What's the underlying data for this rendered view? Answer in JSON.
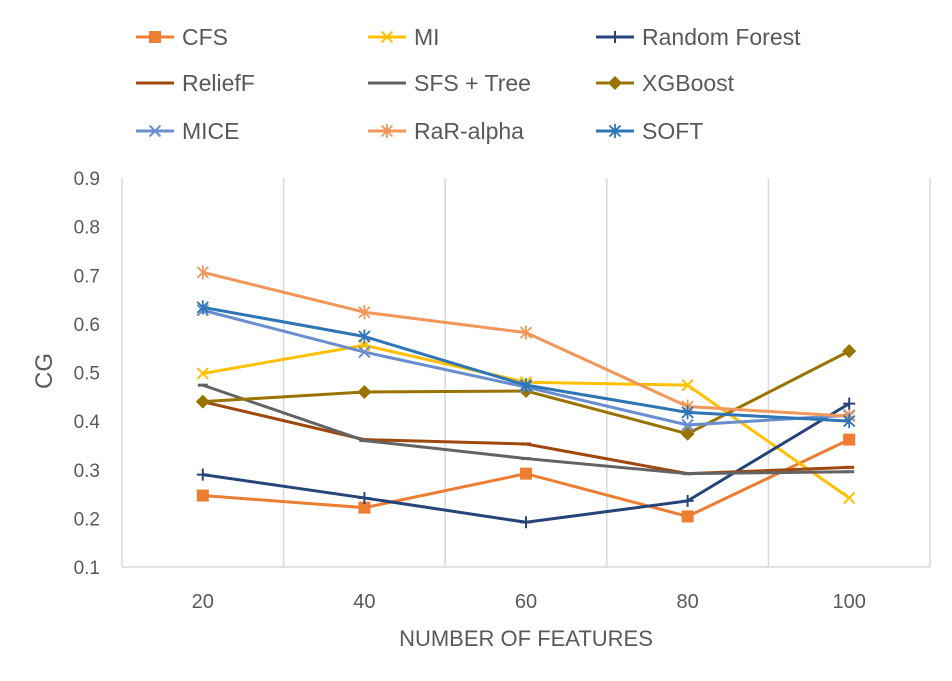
{
  "chart_data": {
    "type": "line",
    "title": "",
    "xlabel": "NUMBER OF FEATURES",
    "ylabel": "CG",
    "categories": [
      "20",
      "40",
      "60",
      "80",
      "100"
    ],
    "ylim": [
      0.1,
      0.9
    ],
    "yticks": [
      "0.1",
      "0.2",
      "0.3",
      "0.4",
      "0.5",
      "0.6",
      "0.7",
      "0.8",
      "0.9"
    ],
    "grid": "vertical",
    "legend_position": "top",
    "series": [
      {
        "name": "CFS",
        "color": "#ED7D31",
        "marker": "square",
        "values": [
          0.247,
          0.222,
          0.292,
          0.204,
          0.362
        ]
      },
      {
        "name": "MI",
        "color": "#FFC000",
        "marker": "x",
        "values": [
          0.498,
          0.556,
          0.48,
          0.474,
          0.242
        ]
      },
      {
        "name": "Random Forest",
        "color": "#264478",
        "marker": "plus",
        "values": [
          0.29,
          0.242,
          0.192,
          0.236,
          0.436
        ]
      },
      {
        "name": "ReliefF",
        "color": "#9E480E",
        "marker": "dash",
        "values": [
          0.44,
          0.362,
          0.353,
          0.292,
          0.305
        ]
      },
      {
        "name": "SFS + Tree",
        "color": "#636363",
        "marker": "dash",
        "values": [
          0.474,
          0.36,
          0.323,
          0.292,
          0.296
        ]
      },
      {
        "name": "XGBoost",
        "color": "#997300",
        "marker": "diamond",
        "values": [
          0.44,
          0.46,
          0.462,
          0.374,
          0.544
        ]
      },
      {
        "name": "MICE",
        "color": "#698ED0",
        "marker": "x",
        "values": [
          0.628,
          0.542,
          0.47,
          0.392,
          0.412
        ]
      },
      {
        "name": "RaR-alpha",
        "color": "#F1975A",
        "marker": "star",
        "values": [
          0.706,
          0.624,
          0.582,
          0.43,
          0.41
        ]
      },
      {
        "name": "SOFT",
        "color": "#2E75B6",
        "marker": "star",
        "values": [
          0.634,
          0.574,
          0.474,
          0.418,
          0.4
        ]
      }
    ]
  }
}
